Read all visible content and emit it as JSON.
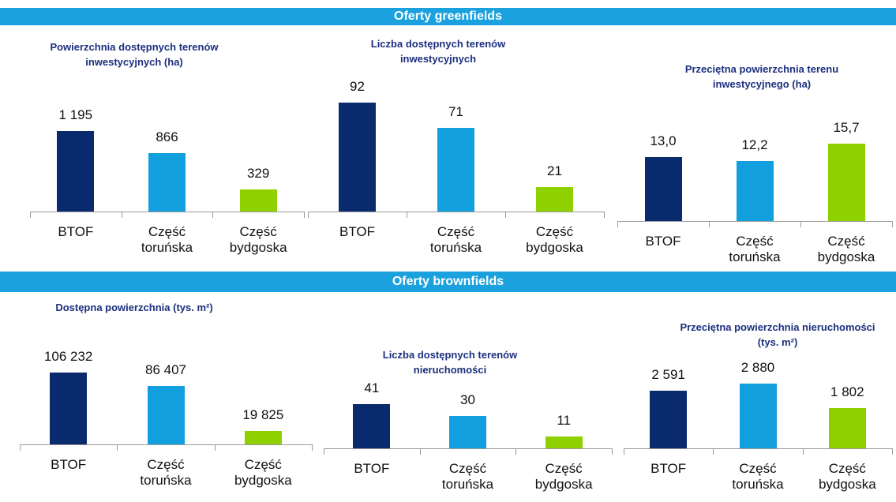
{
  "sections": [
    {
      "title": "Oferty greenfields"
    },
    {
      "title": "Oferty brownfields"
    }
  ],
  "chart_data": [
    {
      "type": "bar",
      "title": "Powierzchnia dostępnych terenów inwestycyjnych (ha)",
      "categories": [
        "BTOF",
        "Część toruńska",
        "Część bydgoska"
      ],
      "values": [
        1195,
        866,
        329
      ],
      "value_labels": [
        "1 195",
        "866",
        "329"
      ],
      "colors": [
        "#0a2a6e",
        "#129fdd",
        "#8fd000"
      ],
      "ylim": [
        0,
        1750
      ]
    },
    {
      "type": "bar",
      "title": "Liczba dostępnych terenów inwestycyjnych",
      "categories": [
        "BTOF",
        "Część toruńska",
        "Część bydgoska"
      ],
      "values": [
        92,
        71,
        21
      ],
      "colors": [
        "#0a2a6e",
        "#129fdd",
        "#8fd000"
      ],
      "ylim": [
        0,
        100
      ]
    },
    {
      "type": "bar",
      "title": "Przeciętna powierzchnia terenu inwestycyjnego (ha)",
      "categories": [
        "BTOF",
        "Część toruńska",
        "Część bydgoska"
      ],
      "values": [
        13.0,
        12.2,
        15.7
      ],
      "value_labels": [
        "13,0",
        "12,2",
        "15,7"
      ],
      "colors": [
        "#0a2a6e",
        "#129fdd",
        "#8fd000"
      ],
      "ylim": [
        0,
        24
      ]
    },
    {
      "type": "bar",
      "title": "Dostępna powierzchnia (tys. m²)",
      "categories": [
        "BTOF",
        "Część toruńska",
        "Część bydgoska"
      ],
      "values": [
        106232,
        86407,
        19825
      ],
      "value_labels": [
        "106 232",
        "86 407",
        "19 825"
      ],
      "colors": [
        "#0a2a6e",
        "#129fdd",
        "#8fd000"
      ],
      "ylim": [
        0,
        175000
      ]
    },
    {
      "type": "bar",
      "title": "Liczba dostępnych terenów nieruchomości",
      "categories": [
        "BTOF",
        "Część toruńska",
        "Część bydgoska"
      ],
      "values": [
        41,
        30,
        11
      ],
      "colors": [
        "#0a2a6e",
        "#129fdd",
        "#8fd000"
      ],
      "ylim": [
        0,
        110
      ]
    },
    {
      "type": "bar",
      "title": "Przeciętna powierzchnia nieruchomości (tys. m²)",
      "categories": [
        "BTOF",
        "Część toruńska",
        "Część bydgoska"
      ],
      "values": [
        2591,
        2880,
        1802
      ],
      "value_labels": [
        "2 591",
        "2 880",
        "1 802"
      ],
      "colors": [
        "#0a2a6e",
        "#129fdd",
        "#8fd000"
      ],
      "ylim": [
        0,
        5300
      ]
    }
  ]
}
